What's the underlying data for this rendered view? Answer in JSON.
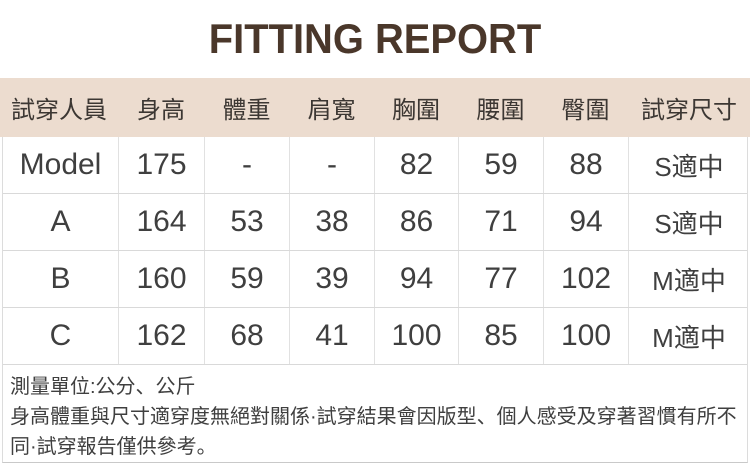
{
  "title": "FITTING REPORT",
  "colors": {
    "title_text": "#4a372a",
    "header_background": "#ecdccf",
    "header_text": "#3c3733",
    "grid_line": "#d9d9d9",
    "body_text": "#3f3f3f",
    "page_background": "#ffffff"
  },
  "table": {
    "columns": [
      "試穿人員",
      "身高",
      "體重",
      "肩寬",
      "胸圍",
      "腰圍",
      "臀圍",
      "試穿尺寸"
    ],
    "rows": [
      [
        "Model",
        "175",
        "-",
        "-",
        "82",
        "59",
        "88",
        "S適中"
      ],
      [
        "A",
        "164",
        "53",
        "38",
        "86",
        "71",
        "94",
        "S適中"
      ],
      [
        "B",
        "160",
        "59",
        "39",
        "94",
        "77",
        "102",
        "M適中"
      ],
      [
        "C",
        "162",
        "68",
        "41",
        "100",
        "85",
        "100",
        "M適中"
      ]
    ]
  },
  "notes": {
    "unit_line": "測量單位:公分、公斤",
    "disclaimer": "身高體重與尺寸適穿度無絕對關係·試穿結果會因版型、個人感受及穿著習慣有所不同·試穿報告僅供參考。"
  }
}
